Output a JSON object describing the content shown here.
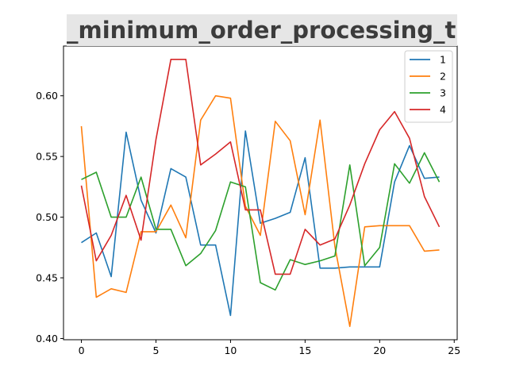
{
  "chart_data": {
    "type": "line",
    "title": "_minimum_order_processing_time_",
    "xlabel": "",
    "ylabel": "",
    "xlim": [
      -1.2,
      25.2
    ],
    "ylim": [
      0.399,
      0.641
    ],
    "xticks": [
      0,
      5,
      10,
      15,
      20,
      25
    ],
    "yticks": [
      0.4,
      0.45,
      0.5,
      0.55,
      0.6
    ],
    "ytick_labels": [
      "0.40",
      "0.45",
      "0.50",
      "0.55",
      "0.60"
    ],
    "grid": false,
    "legend_position": "top-right",
    "x": [
      0,
      1,
      2,
      3,
      4,
      5,
      6,
      7,
      8,
      9,
      10,
      11,
      12,
      13,
      14,
      15,
      16,
      17,
      18,
      19,
      20,
      21,
      22,
      23,
      24
    ],
    "series": [
      {
        "name": "1",
        "color": "#1f77b4",
        "values": [
          0.479,
          0.487,
          0.451,
          0.57,
          0.514,
          0.487,
          0.54,
          0.533,
          0.477,
          0.477,
          0.419,
          0.571,
          0.495,
          0.499,
          0.504,
          0.549,
          0.458,
          0.458,
          0.459,
          0.459,
          0.459,
          0.529,
          0.559,
          0.532,
          0.533
        ]
      },
      {
        "name": "2",
        "color": "#ff7f0e",
        "values": [
          0.575,
          0.434,
          0.441,
          0.438,
          0.488,
          0.488,
          0.51,
          0.483,
          0.58,
          0.6,
          0.598,
          0.509,
          0.485,
          0.579,
          0.563,
          0.502,
          0.58,
          0.476,
          0.41,
          0.492,
          0.493,
          0.493,
          0.493,
          0.472,
          0.473
        ]
      },
      {
        "name": "3",
        "color": "#2ca02c",
        "values": [
          0.531,
          0.537,
          0.5,
          0.5,
          0.533,
          0.49,
          0.49,
          0.46,
          0.47,
          0.489,
          0.529,
          0.525,
          0.446,
          0.44,
          0.465,
          0.461,
          0.464,
          0.468,
          0.543,
          0.46,
          0.475,
          0.544,
          0.528,
          0.553,
          0.529
        ]
      },
      {
        "name": "4",
        "color": "#d62728",
        "values": [
          0.526,
          0.464,
          0.485,
          0.518,
          0.481,
          0.564,
          0.63,
          0.63,
          0.543,
          0.552,
          0.562,
          0.506,
          0.506,
          0.453,
          0.453,
          0.49,
          0.477,
          0.482,
          0.51,
          0.544,
          0.572,
          0.587,
          0.565,
          0.517,
          0.492
        ]
      }
    ]
  }
}
